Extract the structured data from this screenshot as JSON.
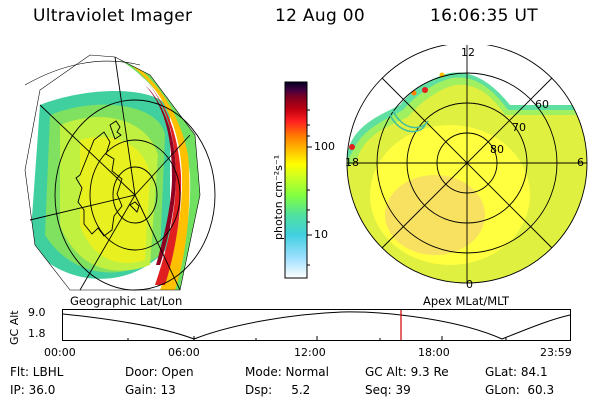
{
  "header": {
    "title": "Ultraviolet Imager",
    "date": "12 Aug 00",
    "time": "16:06:35 UT"
  },
  "left_panel": {
    "caption": "Geographic Lat/Lon"
  },
  "right_panel": {
    "caption": "Apex MLat/MLT",
    "mlt_labels": {
      "top": "12",
      "left": "18",
      "right": "6",
      "bottom": "0"
    },
    "mlat_labels": [
      "60",
      "70",
      "80"
    ]
  },
  "colorbar": {
    "unit_label": "photon cm⁻²s⁻¹",
    "tick_labels": [
      "100",
      "10"
    ],
    "colors": [
      "#ffffff",
      "#a0e0ff",
      "#40d0e0",
      "#50e0a0",
      "#80ff40",
      "#d0ff20",
      "#ffff00",
      "#ffc000",
      "#ff8000",
      "#ff2020",
      "#c00010",
      "#800020",
      "#400040",
      "#000020"
    ]
  },
  "altitude_plot": {
    "ylabel": "GC Alt",
    "yticks": [
      "9.0",
      "1.8"
    ],
    "xticks": [
      "00:00",
      "06:00",
      "12:00",
      "18:00",
      "23:59"
    ],
    "cursor_color": "#d00000"
  },
  "info": {
    "filter": "Flt: LBHL",
    "door": "Door: Open",
    "mode": "Mode: Normal",
    "gc_alt": "GC Alt: 9.3 Re",
    "glat": "GLat: 84.1",
    "ip": "IP: 36.0",
    "gain": "Gain: 13",
    "dsp": "Dsp:     5.2",
    "seq": "Seq: 39",
    "glon": "GLon:  60.3"
  }
}
